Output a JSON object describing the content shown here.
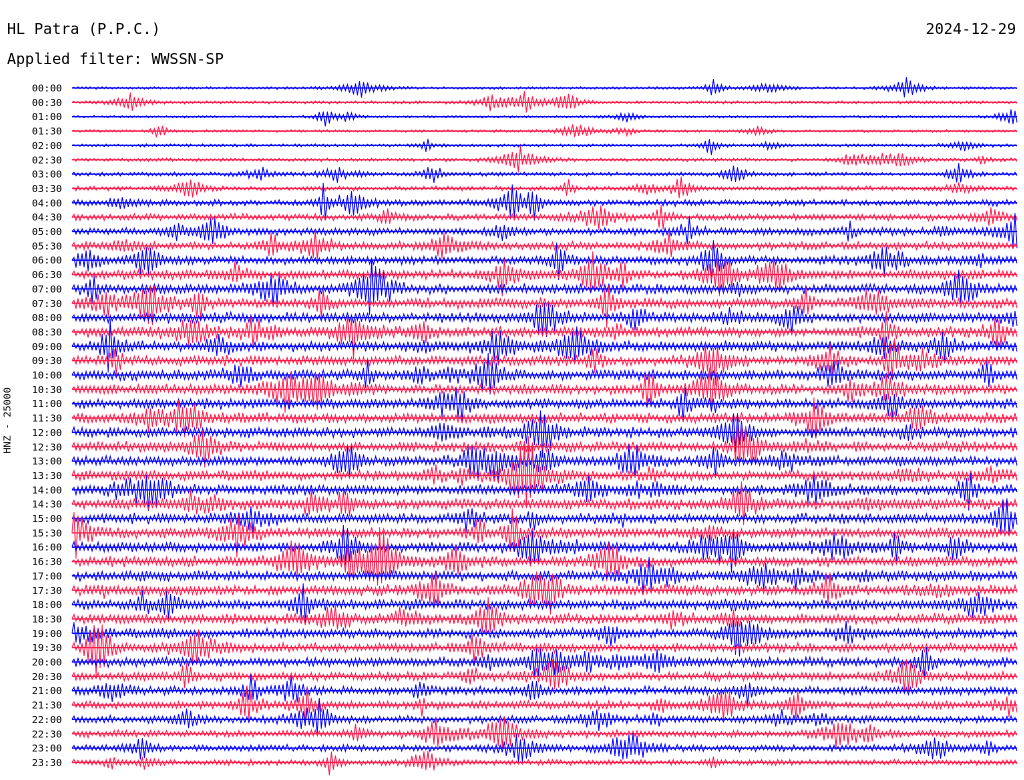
{
  "header": {
    "station": "HL Patra (P.P.C.)",
    "date": "2024-12-29",
    "filter": "Applied filter: WWSSN-SP",
    "channel_label": "HNZ - 25000"
  },
  "colors": {
    "trace_a": "#0000ff",
    "trace_b": "#ff1a4a",
    "text": "#000000"
  },
  "chart_data": {
    "type": "line",
    "title": "HL Patra (P.P.C.)",
    "ylabel": "HNZ - 25000",
    "rows": [
      "00:00",
      "00:30",
      "01:00",
      "01:30",
      "02:00",
      "02:30",
      "03:00",
      "03:30",
      "04:00",
      "04:30",
      "05:00",
      "05:30",
      "06:00",
      "06:30",
      "07:00",
      "07:30",
      "08:00",
      "08:30",
      "09:00",
      "09:30",
      "10:00",
      "10:30",
      "11:00",
      "11:30",
      "12:00",
      "12:30",
      "13:00",
      "13:30",
      "14:00",
      "14:30",
      "15:00",
      "15:30",
      "16:00",
      "16:30",
      "17:00",
      "17:30",
      "18:00",
      "18:30",
      "19:00",
      "19:30",
      "20:00",
      "20:30",
      "21:00",
      "21:30",
      "22:00",
      "22:30",
      "23:00",
      "23:30"
    ],
    "noise_level": [
      0.15,
      0.2,
      0.12,
      0.15,
      0.2,
      0.25,
      0.3,
      0.35,
      0.55,
      0.6,
      0.7,
      0.75,
      0.8,
      0.9,
      0.95,
      1.0,
      1.0,
      1.0,
      1.0,
      1.0,
      1.0,
      1.0,
      1.0,
      1.0,
      1.0,
      1.0,
      1.0,
      1.0,
      1.0,
      1.0,
      1.0,
      1.0,
      1.0,
      1.0,
      1.0,
      1.0,
      1.0,
      1.0,
      0.95,
      0.9,
      0.9,
      0.85,
      0.8,
      0.75,
      0.7,
      0.65,
      0.6,
      0.5
    ],
    "colors_cycle": [
      "blue",
      "red"
    ],
    "grid": false
  }
}
